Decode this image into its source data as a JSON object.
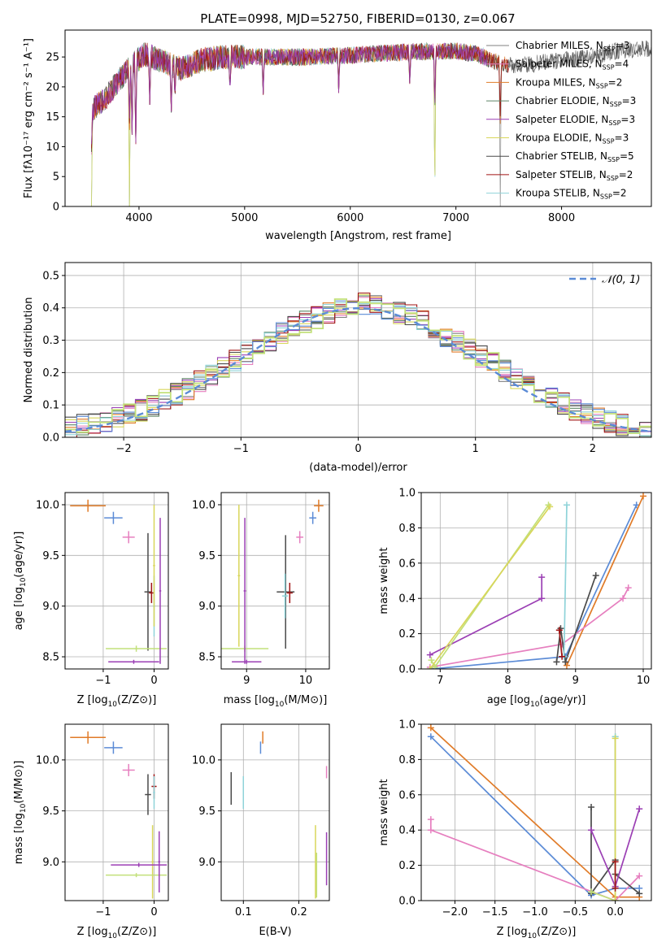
{
  "title": "PLATE=0998, MJD=52750, FIBERID=0130, z=0.067",
  "colors": [
    "#808080",
    "#e67fbf",
    "#e07b28",
    "#5d8566",
    "#9b3fb4",
    "#d8d65a",
    "#4a4a4a",
    "#a01515",
    "#8fd3d9"
  ],
  "chart_data": [
    {
      "type": "line",
      "id": "spectrum",
      "title": "PLATE=0998, MJD=52750, FIBERID=0130, z=0.067",
      "xlabel": "wavelength [Angstrom, rest frame]",
      "ylabel": "Flux [fλ10⁻¹⁷ erg cm⁻² s⁻¹ A⁻¹]",
      "xlim": [
        3300,
        8850
      ],
      "ylim": [
        0,
        29.5
      ],
      "xticks": [
        4000,
        5000,
        6000,
        7000,
        8000
      ],
      "yticks": [
        0,
        5,
        10,
        15,
        20,
        25
      ],
      "grid": false,
      "legend_position": "right",
      "series": [
        {
          "name": "Chabrier MILES, N_SSP=3",
          "label_main": "Chabrier MILES, N",
          "label_sub": "SSP",
          "label_tail": "=3"
        },
        {
          "name": "Salpeter MILES, N_SSP=4",
          "label_main": "Salpeter MILES, N",
          "label_sub": "SSP",
          "label_tail": "=4"
        },
        {
          "name": "Kroupa MILES, N_SSP=2",
          "label_main": "Kroupa MILES, N",
          "label_sub": "SSP",
          "label_tail": "=2"
        },
        {
          "name": "Chabrier ELODIE, N_SSP=3",
          "label_main": "Chabrier ELODIE, N",
          "label_sub": "SSP",
          "label_tail": "=3"
        },
        {
          "name": "Salpeter ELODIE, N_SSP=3",
          "label_main": "Salpeter ELODIE, N",
          "label_sub": "SSP",
          "label_tail": "=3"
        },
        {
          "name": "Kroupa ELODIE, N_SSP=3",
          "label_main": "Kroupa ELODIE, N",
          "label_sub": "SSP",
          "label_tail": "=3"
        },
        {
          "name": "Chabrier STELIB, N_SSP=5",
          "label_main": "Chabrier STELIB, N",
          "label_sub": "SSP",
          "label_tail": "=5"
        },
        {
          "name": "Salpeter STELIB, N_SSP=2",
          "label_main": "Salpeter STELIB, N",
          "label_sub": "SSP",
          "label_tail": "=2"
        },
        {
          "name": "Kroupa STELIB, N_SSP=2",
          "label_main": "Kroupa STELIB, N",
          "label_sub": "SSP",
          "label_tail": "=2"
        }
      ],
      "continuum": {
        "x": [
          3550,
          3700,
          3850,
          3950,
          4050,
          4200,
          4400,
          4600,
          4800,
          5000,
          5300,
          5600,
          6000,
          6500,
          7000,
          7200,
          7400,
          7600,
          7800,
          8000,
          8300,
          8500,
          8850
        ],
        "y": [
          16,
          18.5,
          22,
          24,
          25.5,
          24.5,
          23,
          24.5,
          25,
          25,
          25,
          25,
          25.3,
          25.8,
          26,
          25.5,
          24,
          23.5,
          24,
          24.5,
          25,
          26,
          26.5
        ]
      },
      "features": [
        {
          "x": 3550,
          "y": 0
        },
        {
          "x": 3910,
          "y": 0
        },
        {
          "x": 3934,
          "y": 12
        },
        {
          "x": 3969,
          "y": 9
        },
        {
          "x": 4102,
          "y": 17
        },
        {
          "x": 4305,
          "y": 15
        },
        {
          "x": 4340,
          "y": 18
        },
        {
          "x": 4861,
          "y": 19
        },
        {
          "x": 5175,
          "y": 18
        },
        {
          "x": 5890,
          "y": 19
        },
        {
          "x": 6563,
          "y": 20
        },
        {
          "x": 6800,
          "y": 0
        },
        {
          "x": 7420,
          "y": 0
        }
      ]
    },
    {
      "type": "histogram",
      "id": "residuals",
      "xlabel": "(data-model)/error",
      "ylabel": "Normed distribution",
      "xlim": [
        -2.5,
        2.5
      ],
      "ylim": [
        0,
        0.54
      ],
      "xticks": [
        -2,
        -1,
        0,
        1,
        2
      ],
      "xtick_labels": [
        "−2",
        "−1",
        "0",
        "1",
        "2"
      ],
      "yticks": [
        0.0,
        0.1,
        0.2,
        0.3,
        0.4,
        0.5
      ],
      "ytick_labels": [
        "0.0",
        "0.1",
        "0.2",
        "0.3",
        "0.4",
        "0.5"
      ],
      "grid": true,
      "bin_width": 0.1,
      "legend_position": "top-right",
      "reference": {
        "name": "𝒩(0, 1)",
        "label": "𝒩(0, 1)",
        "mean": 0,
        "sigma": 1,
        "color": "#5b8bd6"
      },
      "profile_x": [
        -2.5,
        -2.0,
        -1.5,
        -1.0,
        -0.5,
        0.0,
        0.5,
        1.0,
        1.5,
        2.0,
        2.5
      ],
      "profile_y": [
        0.03,
        0.06,
        0.14,
        0.25,
        0.35,
        0.42,
        0.37,
        0.26,
        0.15,
        0.06,
        0.02
      ]
    },
    {
      "type": "scatter",
      "id": "age-vs-Z",
      "xlabel_main": "Z [log",
      "xlabel_sub": "10",
      "xlabel_tail": "(Z/Z⊙)]",
      "ylabel_main": "age  [log",
      "ylabel_sub": "10",
      "ylabel_tail": "(age/yr)]",
      "xlim": [
        -1.75,
        0.28
      ],
      "ylim": [
        8.38,
        10.12
      ],
      "xticks": [
        -1,
        0
      ],
      "xtick_labels": [
        "−1",
        "0"
      ],
      "yticks": [
        8.5,
        9.0,
        9.5,
        10.0
      ],
      "ytick_labels": [
        "8.5",
        "9.0",
        "9.5",
        "10.0"
      ],
      "grid": true,
      "points": [
        {
          "color": "#e07b28",
          "x": -1.3,
          "y": 9.99,
          "xerr": 0.35,
          "yerr": 0.06
        },
        {
          "color": "#5b8bd6",
          "x": -0.8,
          "y": 9.87,
          "xerr": 0.18,
          "yerr": 0.06
        },
        {
          "color": "#e67fbf",
          "x": -0.5,
          "y": 9.68,
          "xerr": 0.12,
          "yerr": 0.06
        },
        {
          "color": "#4a4a4a",
          "x": -0.12,
          "y": 9.14,
          "xerr": 0.07,
          "yerr": 0.58
        },
        {
          "color": "#a01515",
          "x": -0.05,
          "y": 9.13,
          "xerr": 0.05,
          "yerr": 0.1
        },
        {
          "color": "#8fd3d9",
          "x": 0.0,
          "y": 9.0,
          "xerr": 0.02,
          "yerr": 0.3
        },
        {
          "color": "#d8d65a",
          "x": 0.0,
          "y": 9.4,
          "xerr": 0.02,
          "yerr": 0.6
        },
        {
          "color": "#c2e07a",
          "x": -0.35,
          "y": 8.58,
          "xerr": 0.6,
          "yerr": 0.03
        },
        {
          "color": "#9b3fb4",
          "x": 0.12,
          "y": 9.15,
          "xerr": 0.02,
          "yerr": 0.72
        },
        {
          "color": "#9b3fb4",
          "x": -0.4,
          "y": 8.45,
          "xerr": 0.5,
          "yerr": 0.02
        }
      ]
    },
    {
      "type": "scatter",
      "id": "age-vs-mass",
      "xlabel_main": "mass [log",
      "xlabel_sub": "10",
      "xlabel_tail": "(M/M⊙)]",
      "ylabel_main": "",
      "ylabel_sub": "",
      "ylabel_tail": "",
      "xlim": [
        8.57,
        10.4
      ],
      "ylim": [
        8.38,
        10.12
      ],
      "xticks": [
        9,
        10
      ],
      "xtick_labels": [
        "9",
        "10"
      ],
      "yticks": [
        8.5,
        9.0,
        9.5,
        10.0
      ],
      "ytick_labels": [
        "8.5",
        "9.0",
        "9.5",
        "10.0"
      ],
      "grid": true,
      "points": [
        {
          "color": "#e07b28",
          "x": 10.22,
          "y": 9.99,
          "xerr": 0.08,
          "yerr": 0.06
        },
        {
          "color": "#5b8bd6",
          "x": 10.12,
          "y": 9.87,
          "xerr": 0.06,
          "yerr": 0.06
        },
        {
          "color": "#e67fbf",
          "x": 9.9,
          "y": 9.68,
          "xerr": 0.06,
          "yerr": 0.06
        },
        {
          "color": "#4a4a4a",
          "x": 9.66,
          "y": 9.14,
          "xerr": 0.15,
          "yerr": 0.56
        },
        {
          "color": "#a01515",
          "x": 9.73,
          "y": 9.13,
          "xerr": 0.05,
          "yerr": 0.1
        },
        {
          "color": "#8fd3d9",
          "x": 9.65,
          "y": 9.1,
          "xerr": 0.05,
          "yerr": 0.22
        },
        {
          "color": "#d8d65a",
          "x": 8.87,
          "y": 9.3,
          "xerr": 0.02,
          "yerr": 0.7
        },
        {
          "color": "#c2e07a",
          "x": 8.97,
          "y": 8.58,
          "xerr": 0.4,
          "yerr": 0.03
        },
        {
          "color": "#9b3fb4",
          "x": 8.97,
          "y": 9.15,
          "xerr": 0.02,
          "yerr": 0.72
        },
        {
          "color": "#9b3fb4",
          "x": 9.0,
          "y": 8.45,
          "xerr": 0.25,
          "yerr": 0.02
        }
      ]
    },
    {
      "type": "line",
      "id": "weight-vs-age",
      "xlabel_main": "age  [log",
      "xlabel_sub": "10",
      "xlabel_tail": "(age/yr)]",
      "ylabel": "mass weight",
      "xlim": [
        6.72,
        10.12
      ],
      "ylim": [
        0,
        1
      ],
      "xticks": [
        7,
        8,
        9,
        10
      ],
      "xtick_labels": [
        "7",
        "8",
        "9",
        "10"
      ],
      "yticks": [
        0.0,
        0.2,
        0.4,
        0.6,
        0.8,
        1.0
      ],
      "ytick_labels": [
        "0.0",
        "0.2",
        "0.4",
        "0.6",
        "0.8",
        "1.0"
      ],
      "grid": true,
      "series": [
        {
          "color": "#5b8bd6",
          "x": [
            6.88,
            8.85,
            9.9
          ],
          "y": [
            0.0,
            0.07,
            0.93
          ]
        },
        {
          "color": "#e07b28",
          "x": [
            8.87,
            10.0
          ],
          "y": [
            0.02,
            0.98
          ]
        },
        {
          "color": "#e67fbf",
          "x": [
            6.85,
            8.8,
            9.7,
            9.78
          ],
          "y": [
            0.01,
            0.14,
            0.4,
            0.46
          ]
        },
        {
          "color": "#4a4a4a",
          "x": [
            8.72,
            8.78,
            8.85,
            9.3
          ],
          "y": [
            0.04,
            0.23,
            0.04,
            0.53
          ]
        },
        {
          "color": "#9b3fb4",
          "x": [
            6.85,
            8.5,
            8.5
          ],
          "y": [
            0.08,
            0.4,
            0.52
          ]
        },
        {
          "color": "#c2e07a",
          "x": [
            6.87,
            6.92,
            8.6
          ],
          "y": [
            0.05,
            0.01,
            0.93
          ]
        },
        {
          "color": "#d8d65a",
          "x": [
            6.85,
            8.62
          ],
          "y": [
            0.0,
            0.92
          ]
        },
        {
          "color": "#8fd3d9",
          "x": [
            8.83,
            8.87
          ],
          "y": [
            0.07,
            0.93
          ]
        },
        {
          "color": "#a01515",
          "x": [
            8.76,
            8.8
          ],
          "y": [
            0.22,
            0.07
          ]
        }
      ]
    },
    {
      "type": "scatter",
      "id": "mass-vs-Z",
      "xlabel_main": "Z [log",
      "xlabel_sub": "10",
      "xlabel_tail": "(Z/Z⊙)]",
      "ylabel_main": "mass [log",
      "ylabel_sub": "10",
      "ylabel_tail": "(M/M⊙)]",
      "xlim": [
        -1.75,
        0.28
      ],
      "ylim": [
        8.62,
        10.35
      ],
      "xticks": [
        -1,
        0
      ],
      "xtick_labels": [
        "−1",
        "0"
      ],
      "yticks": [
        9.0,
        9.5,
        10.0
      ],
      "ytick_labels": [
        "9.0",
        "9.5",
        "10.0"
      ],
      "grid": true,
      "points": [
        {
          "color": "#e07b28",
          "x": -1.3,
          "y": 10.22,
          "xerr": 0.35,
          "yerr": 0.06
        },
        {
          "color": "#5b8bd6",
          "x": -0.8,
          "y": 10.12,
          "xerr": 0.18,
          "yerr": 0.06
        },
        {
          "color": "#e67fbf",
          "x": -0.5,
          "y": 9.9,
          "xerr": 0.12,
          "yerr": 0.06
        },
        {
          "color": "#4a4a4a",
          "x": -0.12,
          "y": 9.66,
          "xerr": 0.06,
          "yerr": 0.2
        },
        {
          "color": "#a01515",
          "x": 0.0,
          "y": 9.74,
          "xerr": 0.05,
          "yerr": 0.12
        },
        {
          "color": "#8fd3d9",
          "x": 0.0,
          "y": 9.68,
          "xerr": 0.02,
          "yerr": 0.16
        },
        {
          "color": "#d8d65a",
          "x": -0.03,
          "y": 9.0,
          "xerr": 0.02,
          "yerr": 0.36
        },
        {
          "color": "#c2e07a",
          "x": -0.35,
          "y": 8.87,
          "xerr": 0.6,
          "yerr": 0.02
        },
        {
          "color": "#9b3fb4",
          "x": 0.1,
          "y": 9.0,
          "xerr": 0.02,
          "yerr": 0.3
        },
        {
          "color": "#9b3fb4",
          "x": -0.3,
          "y": 8.97,
          "xerr": 0.55,
          "yerr": 0.02
        }
      ]
    },
    {
      "type": "scatter",
      "id": "mass-vs-EBV",
      "xlabel_main": "E(B-V)",
      "xlabel_sub": "",
      "xlabel_tail": "",
      "ylabel_main": "",
      "ylabel_sub": "",
      "ylabel_tail": "",
      "xlim": [
        0.06,
        0.255
      ],
      "ylim": [
        8.62,
        10.35
      ],
      "xticks": [
        0.1,
        0.2
      ],
      "xtick_labels": [
        "0.1",
        "0.2"
      ],
      "yticks": [
        9.0,
        9.5,
        10.0
      ],
      "ytick_labels": [
        "9.0",
        "9.5",
        "10.0"
      ],
      "grid": true,
      "points": [
        {
          "color": "#e07b28",
          "x": 0.135,
          "y": 10.22,
          "xerr": 0.0,
          "yerr": 0.06
        },
        {
          "color": "#5b8bd6",
          "x": 0.131,
          "y": 10.12,
          "xerr": 0.0,
          "yerr": 0.06
        },
        {
          "color": "#e67fbf",
          "x": 0.25,
          "y": 9.88,
          "xerr": 0.0,
          "yerr": 0.06
        },
        {
          "color": "#4a4a4a",
          "x": 0.078,
          "y": 9.72,
          "xerr": 0.0,
          "yerr": 0.16
        },
        {
          "color": "#8fd3d9",
          "x": 0.1,
          "y": 9.68,
          "xerr": 0.0,
          "yerr": 0.16
        },
        {
          "color": "#d8d65a",
          "x": 0.23,
          "y": 9.0,
          "xerr": 0.0,
          "yerr": 0.36
        },
        {
          "color": "#c2e07a",
          "x": 0.232,
          "y": 8.87,
          "xerr": 0.0,
          "yerr": 0.22
        },
        {
          "color": "#9b3fb4",
          "x": 0.25,
          "y": 9.03,
          "xerr": 0.0,
          "yerr": 0.26
        }
      ]
    },
    {
      "type": "line",
      "id": "weight-vs-Z",
      "xlabel_main": "Z [log",
      "xlabel_sub": "10",
      "xlabel_tail": "(Z/Z⊙)]",
      "ylabel": "mass weight",
      "xlim": [
        -2.42,
        0.45
      ],
      "ylim": [
        0,
        1
      ],
      "xticks": [
        -2.0,
        -1.5,
        -1.0,
        -0.5,
        0.0
      ],
      "xtick_labels": [
        "−2.0",
        "−1.5",
        "−1.0",
        "−0.5",
        "0.0"
      ],
      "yticks": [
        0.0,
        0.2,
        0.4,
        0.6,
        0.8,
        1.0
      ],
      "ytick_labels": [
        "0.0",
        "0.2",
        "0.4",
        "0.6",
        "0.8",
        "1.0"
      ],
      "grid": true,
      "series": [
        {
          "color": "#5b8bd6",
          "x": [
            -2.3,
            -0.3,
            0.0,
            0.3
          ],
          "y": [
            0.93,
            0.03,
            0.07,
            0.07
          ]
        },
        {
          "color": "#e07b28",
          "x": [
            -2.3,
            0.0,
            0.3
          ],
          "y": [
            0.98,
            0.02,
            0.02
          ]
        },
        {
          "color": "#e67fbf",
          "x": [
            -2.3,
            -2.3,
            0.0,
            0.3
          ],
          "y": [
            0.46,
            0.4,
            0.0,
            0.14
          ]
        },
        {
          "color": "#4a4a4a",
          "x": [
            -0.3,
            -0.3,
            0.0,
            0.0,
            0.3
          ],
          "y": [
            0.53,
            0.04,
            0.23,
            0.15,
            0.04
          ]
        },
        {
          "color": "#9b3fb4",
          "x": [
            -0.3,
            0.0,
            0.3
          ],
          "y": [
            0.4,
            0.08,
            0.52
          ]
        },
        {
          "color": "#c2e07a",
          "x": [
            -0.3,
            0.0,
            0.0
          ],
          "y": [
            0.05,
            0.0,
            0.93
          ]
        },
        {
          "color": "#8fd3d9",
          "x": [
            0.0,
            0.0
          ],
          "y": [
            0.07,
            0.93
          ]
        },
        {
          "color": "#d8d65a",
          "x": [
            0.0,
            0.0
          ],
          "y": [
            0.0,
            0.92
          ]
        },
        {
          "color": "#a01515",
          "x": [
            0.0,
            0.0
          ],
          "y": [
            0.22,
            0.07
          ]
        }
      ]
    }
  ]
}
